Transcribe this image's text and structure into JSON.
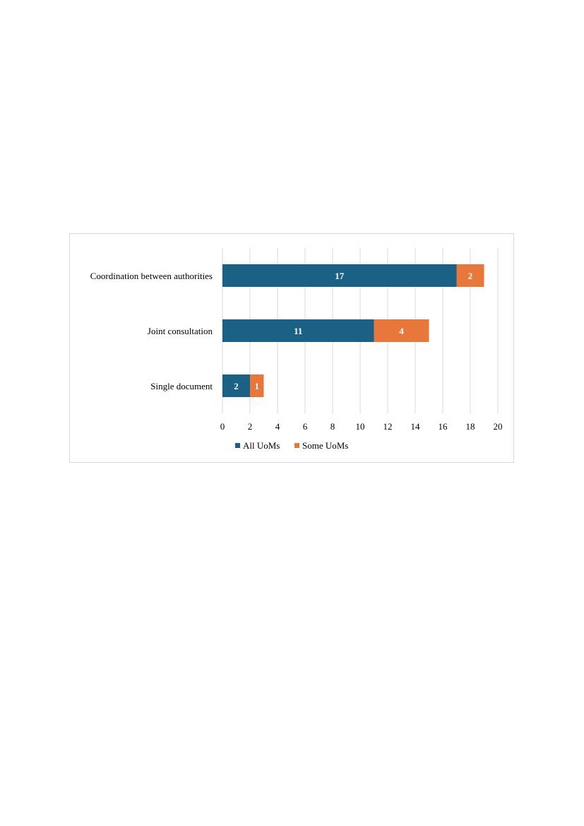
{
  "chart_data": {
    "type": "bar",
    "orientation": "horizontal",
    "stacked": true,
    "categories": [
      "Coordination between authorities",
      "Joint consultation",
      "Single document"
    ],
    "series": [
      {
        "name": "All UoMs",
        "values": [
          17,
          11,
          2
        ]
      },
      {
        "name": "Some UoMs",
        "values": [
          2,
          4,
          1
        ]
      }
    ],
    "xlim": [
      0,
      20
    ],
    "xticks": [
      "0",
      "2",
      "4",
      "6",
      "8",
      "10",
      "12",
      "14",
      "16",
      "18",
      "20"
    ],
    "grid": true,
    "legend": "bottom",
    "colors": {
      "All UoMs": "#1b6185",
      "Some UoMs": "#e7773a"
    }
  }
}
